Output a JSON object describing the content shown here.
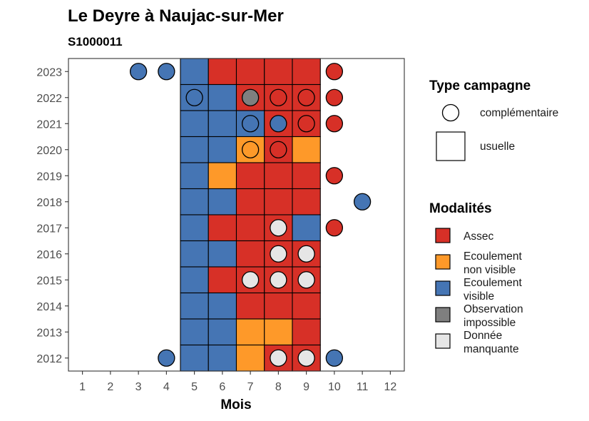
{
  "chart_data": {
    "type": "heatmap",
    "title": "Le Deyre à Naujac-sur-Mer",
    "subtitle": "S1000011",
    "xlabel": "Mois",
    "ylabel": "",
    "x_ticks": [
      "1",
      "2",
      "3",
      "4",
      "5",
      "6",
      "7",
      "8",
      "9",
      "10",
      "11",
      "12"
    ],
    "y_ticks": [
      "2012",
      "2013",
      "2014",
      "2015",
      "2016",
      "2017",
      "2018",
      "2019",
      "2020",
      "2021",
      "2022",
      "2023"
    ],
    "xlim": [
      0.5,
      12.5
    ],
    "ylim": [
      2011.5,
      2023.5
    ],
    "colors": {
      "assec": "#d73027",
      "ecoulement_non_visible": "#fe9929",
      "ecoulement_visible": "#4575b4",
      "observation_impossible": "#7f7f7f",
      "donnee_manquante": "#e6e6e6"
    },
    "usuelle": [
      {
        "year": 2023,
        "months": [
          "ecoulement_visible",
          "assec",
          "assec",
          "assec",
          "assec"
        ]
      },
      {
        "year": 2022,
        "months": [
          "ecoulement_visible",
          "ecoulement_visible",
          "assec",
          "assec",
          "assec"
        ]
      },
      {
        "year": 2021,
        "months": [
          "ecoulement_visible",
          "ecoulement_visible",
          "ecoulement_visible",
          "assec",
          "assec"
        ]
      },
      {
        "year": 2020,
        "months": [
          "ecoulement_visible",
          "ecoulement_visible",
          "ecoulement_non_visible",
          "assec",
          "ecoulement_non_visible"
        ]
      },
      {
        "year": 2019,
        "months": [
          "ecoulement_visible",
          "ecoulement_non_visible",
          "assec",
          "assec",
          "assec"
        ]
      },
      {
        "year": 2018,
        "months": [
          "ecoulement_visible",
          "ecoulement_visible",
          "assec",
          "assec",
          "assec"
        ]
      },
      {
        "year": 2017,
        "months": [
          "ecoulement_visible",
          "assec",
          "assec",
          "assec",
          "ecoulement_visible"
        ]
      },
      {
        "year": 2016,
        "months": [
          "ecoulement_visible",
          "ecoulement_visible",
          "assec",
          "assec",
          "assec"
        ]
      },
      {
        "year": 2015,
        "months": [
          "ecoulement_visible",
          "assec",
          "assec",
          "assec",
          "assec"
        ]
      },
      {
        "year": 2014,
        "months": [
          "ecoulement_visible",
          "ecoulement_visible",
          "assec",
          "assec",
          "assec"
        ]
      },
      {
        "year": 2013,
        "months": [
          "ecoulement_visible",
          "ecoulement_visible",
          "ecoulement_non_visible",
          "ecoulement_non_visible",
          "assec"
        ]
      },
      {
        "year": 2012,
        "months": [
          "ecoulement_visible",
          "ecoulement_visible",
          "ecoulement_non_visible",
          "assec",
          "assec"
        ]
      }
    ],
    "usuelle_first_month": 5,
    "complementaire": [
      {
        "year": 2023,
        "month": 3,
        "modalite": "ecoulement_visible"
      },
      {
        "year": 2023,
        "month": 4,
        "modalite": "ecoulement_visible"
      },
      {
        "year": 2023,
        "month": 10,
        "modalite": "assec"
      },
      {
        "year": 2022,
        "month": 5,
        "modalite": "ecoulement_visible"
      },
      {
        "year": 2022,
        "month": 7,
        "modalite": "observation_impossible"
      },
      {
        "year": 2022,
        "month": 8,
        "modalite": "assec"
      },
      {
        "year": 2022,
        "month": 9,
        "modalite": "assec"
      },
      {
        "year": 2022,
        "month": 10,
        "modalite": "assec"
      },
      {
        "year": 2021,
        "month": 7,
        "modalite": "ecoulement_visible"
      },
      {
        "year": 2021,
        "month": 8,
        "modalite": "ecoulement_visible"
      },
      {
        "year": 2021,
        "month": 9,
        "modalite": "assec"
      },
      {
        "year": 2021,
        "month": 10,
        "modalite": "assec"
      },
      {
        "year": 2020,
        "month": 7,
        "modalite": "ecoulement_non_visible"
      },
      {
        "year": 2020,
        "month": 8,
        "modalite": "assec"
      },
      {
        "year": 2019,
        "month": 10,
        "modalite": "assec"
      },
      {
        "year": 2018,
        "month": 11,
        "modalite": "ecoulement_visible"
      },
      {
        "year": 2017,
        "month": 8,
        "modalite": "donnee_manquante"
      },
      {
        "year": 2017,
        "month": 10,
        "modalite": "assec"
      },
      {
        "year": 2016,
        "month": 8,
        "modalite": "donnee_manquante"
      },
      {
        "year": 2016,
        "month": 9,
        "modalite": "donnee_manquante"
      },
      {
        "year": 2015,
        "month": 7,
        "modalite": "donnee_manquante"
      },
      {
        "year": 2015,
        "month": 8,
        "modalite": "donnee_manquante"
      },
      {
        "year": 2015,
        "month": 9,
        "modalite": "donnee_manquante"
      },
      {
        "year": 2012,
        "month": 4,
        "modalite": "ecoulement_visible"
      },
      {
        "year": 2012,
        "month": 8,
        "modalite": "donnee_manquante"
      },
      {
        "year": 2012,
        "month": 9,
        "modalite": "donnee_manquante"
      },
      {
        "year": 2012,
        "month": 10,
        "modalite": "ecoulement_visible"
      }
    ],
    "legend_placement": "right",
    "grid": false
  },
  "legend_type": {
    "title": "Type campagne",
    "items": [
      {
        "key": "complementaire",
        "label": "complémentaire"
      },
      {
        "key": "usuelle",
        "label": "usuelle"
      }
    ]
  },
  "legend_modalites": {
    "title": "Modalités",
    "items": [
      {
        "key": "assec",
        "lines": [
          "Assec"
        ]
      },
      {
        "key": "ecoulement_non_visible",
        "lines": [
          "Ecoulement",
          "non visible"
        ]
      },
      {
        "key": "ecoulement_visible",
        "lines": [
          "Ecoulement",
          "visible"
        ]
      },
      {
        "key": "observation_impossible",
        "lines": [
          "Observation",
          "impossible"
        ]
      },
      {
        "key": "donnee_manquante",
        "lines": [
          "Donnée",
          "manquante"
        ]
      }
    ]
  }
}
